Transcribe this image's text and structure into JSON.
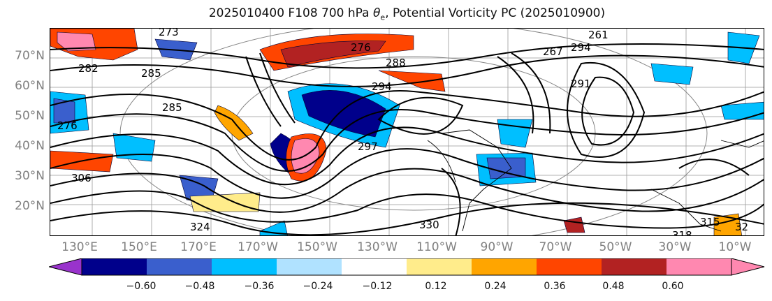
{
  "title": {
    "prefix": "2025010400 F108 700 hPa ",
    "theta": "θ",
    "theta_sub": "e",
    "suffix": ", Potential Vorticity PC (2025010900)"
  },
  "lat_labels": [
    "70°N",
    "60°N",
    "50°N",
    "40°N",
    "30°N",
    "20°N"
  ],
  "lon_labels": [
    "130°E",
    "150°E",
    "170°E",
    "170°W",
    "150°W",
    "130°W",
    "110°W",
    "90°W",
    "70°W",
    "50°W",
    "30°W",
    "10°W"
  ],
  "contour_labels": [
    "273",
    "282",
    "285",
    "285",
    "276",
    "276",
    "288",
    "294",
    "297",
    "306",
    "324",
    "330",
    "318",
    "315",
    "32",
    "261",
    "267",
    "294",
    "291"
  ],
  "colorbar": {
    "ticks": [
      "−0.60",
      "−0.48",
      "−0.36",
      "−0.24",
      "−0.12",
      "0.12",
      "0.24",
      "0.36",
      "0.48",
      "0.60"
    ],
    "colors": [
      "#9933cc",
      "#00008b",
      "#3a5fcd",
      "#00bfff",
      "#b0e2ff",
      "#ffffff",
      "#ffec8b",
      "#ffa500",
      "#ff4500",
      "#b22222",
      "#ff88b0",
      "#ff88b0"
    ]
  },
  "shading": {
    "blue_dark": "#00008b",
    "blue_mid": "#3a5fcd",
    "blue_light": "#00bfff",
    "yellow": "#ffec8b",
    "orange": "#ffa500",
    "red_orange": "#ff4500",
    "red": "#b22222",
    "pink": "#ff88b0"
  }
}
